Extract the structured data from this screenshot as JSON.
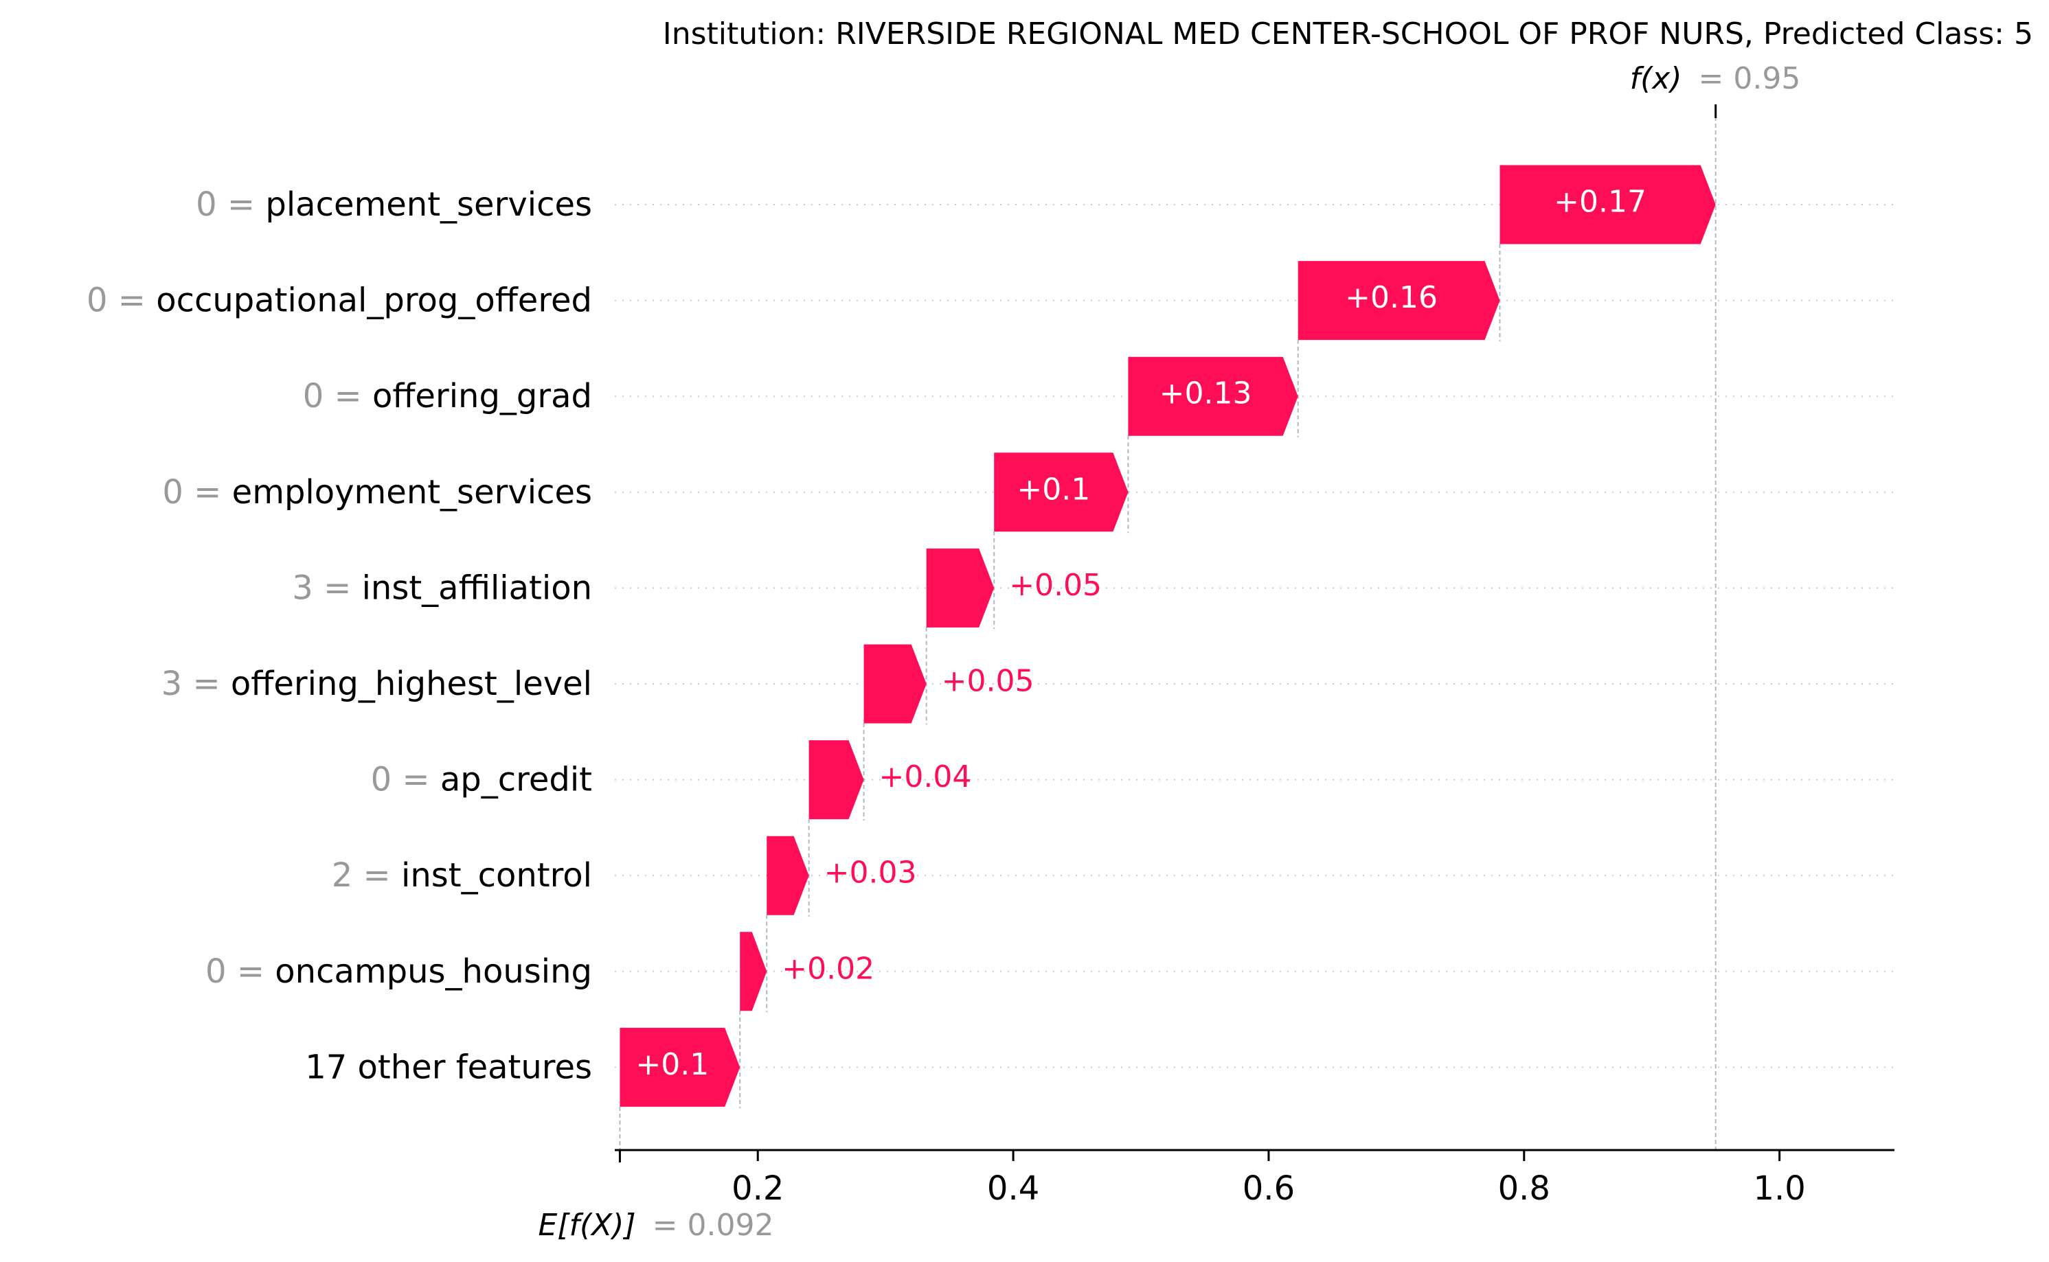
{
  "chart_data": {
    "type": "waterfall",
    "title": "Institution: RIVERSIDE REGIONAL MED CENTER-SCHOOL OF PROF NURS, Predicted Class: 5",
    "fx": {
      "label": "f(x)",
      "value_text": "= 0.95",
      "value": 0.95
    },
    "base": {
      "label": "E[f(X)]",
      "value_text": "= 0.092",
      "value": 0.092
    },
    "xlim": [
      0.088,
      1.09
    ],
    "x_ticks": [
      0.2,
      0.4,
      0.6,
      0.8,
      1.0
    ],
    "x_tick_labels": [
      "0.2",
      "0.4",
      "0.6",
      "0.8",
      "1.0"
    ],
    "features": [
      {
        "value": "0 =",
        "name": "placement_services",
        "start": 0.781,
        "end": 0.95,
        "label": "+0.17",
        "label_inside": true
      },
      {
        "value": "0 =",
        "name": "occupational_prog_offered",
        "start": 0.623,
        "end": 0.781,
        "label": "+0.16",
        "label_inside": true
      },
      {
        "value": "0 =",
        "name": "offering_grad",
        "start": 0.49,
        "end": 0.623,
        "label": "+0.13",
        "label_inside": true
      },
      {
        "value": "0 =",
        "name": "employment_services",
        "start": 0.385,
        "end": 0.49,
        "label": "+0.1",
        "label_inside": true
      },
      {
        "value": "3 =",
        "name": "inst_affiliation",
        "start": 0.332,
        "end": 0.385,
        "label": "+0.05",
        "label_inside": false
      },
      {
        "value": "3 =",
        "name": "offering_highest_level",
        "start": 0.283,
        "end": 0.332,
        "label": "+0.05",
        "label_inside": false
      },
      {
        "value": "0 =",
        "name": "ap_credit",
        "start": 0.24,
        "end": 0.283,
        "label": "+0.04",
        "label_inside": false
      },
      {
        "value": "2 =",
        "name": "inst_control",
        "start": 0.207,
        "end": 0.24,
        "label": "+0.03",
        "label_inside": false
      },
      {
        "value": "0 =",
        "name": "oncampus_housing",
        "start": 0.186,
        "end": 0.207,
        "label": "+0.02",
        "label_inside": false
      },
      {
        "value": "",
        "name": "17 other features",
        "start": 0.092,
        "end": 0.186,
        "label": "+0.1",
        "label_inside": true
      }
    ],
    "colors": {
      "positive": "#ff0d57",
      "text": "#000000",
      "muted": "#999999",
      "guide": "#b0b8c4",
      "gridline": "#cccccc"
    }
  }
}
